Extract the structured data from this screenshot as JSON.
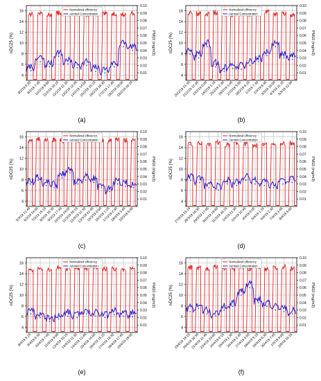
{
  "figure": {
    "panels": [
      {
        "label": "(a)",
        "yleft_label": "nDC25 (%)",
        "yright_label": "PM10 (mg/m3)",
        "legend": [
          "Normalized efficiency",
          "Aerosol Concentration"
        ],
        "xticks": [
          "8/2/19 6:30",
          "9/2/19 7:45",
          "10/2/19 9:00",
          "11/2/19 10:15",
          "12/2/19 11:30",
          "13/2/19 12:45",
          "14/2/19 14:00",
          "15/2/19 15:15",
          "16/2/19 16:30",
          "17/2/19 17:45",
          "18/2/19 19:00",
          "19/2/19 20:15"
        ],
        "yleft_ticks": [
          "4",
          "6",
          "8",
          "10",
          "12",
          "14",
          "16"
        ],
        "yright_ticks": [
          "0.01",
          "0.02",
          "0.03",
          "0.04",
          "0.05",
          "0.06",
          "0.07",
          "0.08",
          "0.09",
          "0.10"
        ]
      },
      {
        "label": "(b)",
        "yleft_label": "nDC25 (%)",
        "yright_label": "PM10 (mg/m3)",
        "legend": [
          "Normalized efficiency",
          "Aerosol Concentration"
        ],
        "xticks": [
          "20/2/19 21:30",
          "21/2/19 22:45",
          "23/2/19 0:00",
          "24/2/19 1:15",
          "25/2/19 2:30",
          "26/2/19 3:45",
          "27/2/19 5:00",
          "28/2/19 6:15",
          "1/3/19 7:30",
          "2/3/19 8:45",
          "3/3/19 10:00",
          "4/3/19 11:15",
          "5/3/19 12:30"
        ],
        "yleft_ticks": [
          "4",
          "6",
          "8",
          "10",
          "12",
          "14",
          "16"
        ],
        "yright_ticks": [
          "0.01",
          "0.02",
          "0.03",
          "0.04",
          "0.05",
          "0.06",
          "0.07",
          "0.08",
          "0.09",
          "0.10"
        ]
      },
      {
        "label": "(c)",
        "yleft_label": "nDC25 (%)",
        "yright_label": "PM10 (mg/m3)",
        "legend": [
          "Normalized efficiency",
          "Aerosol Concentration"
        ],
        "xticks": [
          "5/3/19 12:45",
          "6/3/19 14:00",
          "7/3/19 15:15",
          "8/3/19 16:30",
          "9/3/19 17:45",
          "10/3/19 19:00",
          "11/3/19 20:15",
          "12/3/19 21:30",
          "13/3/19 22:45",
          "15/3/19 0:00",
          "16/3/19 1:15",
          "17/3/19 2:30",
          "18/3/19 3:45",
          "19/3/19 5:00"
        ],
        "yleft_ticks": [
          "4",
          "6",
          "8",
          "10",
          "12",
          "14",
          "16"
        ],
        "yright_ticks": [
          "0.01",
          "0.02",
          "0.03",
          "0.04",
          "0.05",
          "0.06",
          "0.07",
          "0.08",
          "0.09",
          "0.10"
        ]
      },
      {
        "label": "(d)",
        "yleft_label": "nDC25 (%)",
        "yright_label": "PM10 (mg/m3)",
        "legend": [
          "Normalized efficiency",
          "Aerosol Concentration"
        ],
        "xticks": [
          "27/3/19 15:15",
          "28/3/19 16:30",
          "29/3/19 17:45",
          "30/3/19 19:00",
          "31/3/19 20:15",
          "1/4/19 21:30",
          "2/4/19 22:45",
          "4/4/19 0:00",
          "5/4/19 1:15",
          "6/4/19 2:30",
          "7/4/19 3:45",
          "8/4/19 5:00"
        ],
        "yleft_ticks": [
          "4",
          "6",
          "8",
          "10",
          "12",
          "14",
          "16"
        ],
        "yright_ticks": [
          "0.01",
          "0.02",
          "0.03",
          "0.04",
          "0.05",
          "0.06",
          "0.07",
          "0.08",
          "0.09",
          "0.10"
        ]
      },
      {
        "label": "(e)",
        "yleft_label": "nDC25 (%)",
        "yright_label": "PM10 (mg/m3)",
        "legend": [
          "Normalized efficiency",
          "Aerosol Concentration"
        ],
        "xticks": [
          "8/4/19 5:15",
          "9/4/19 6:30",
          "10/4/19 7:45",
          "11/4/19 9:00",
          "12/4/19 10:15",
          "13/4/19 11:30",
          "14/4/19 12:45",
          "15/4/19 14:00",
          "16/4/19 15:15",
          "17/4/19 16:30",
          "18/4/19 17:45",
          "19/4/19 19:00"
        ],
        "yleft_ticks": [
          "4",
          "6",
          "8",
          "10",
          "12",
          "14",
          "16"
        ],
        "yright_ticks": [
          "0.01",
          "0.02",
          "0.03",
          "0.04",
          "0.05",
          "0.06",
          "0.07",
          "0.08",
          "0.09",
          "0.10"
        ]
      },
      {
        "label": "(f)",
        "yleft_label": "nDC25 (%)",
        "yright_label": "PM10 (mg/m3)",
        "legend": [
          "Normalized efficiency",
          "Aerosol Concentration"
        ],
        "xticks": [
          "19/4/19 19:15",
          "20/4/19 20:30",
          "21/4/19 21:45",
          "22/4/19 23:00",
          "24/4/19 0:15",
          "25/4/19 1:30",
          "26/4/19 2:45",
          "27/4/19 4:00",
          "28/4/19 5:15",
          "29/4/19 6:30",
          "30/4/19 7:45",
          "1/5/19 9:00",
          "2/5/19 10:15"
        ],
        "yleft_ticks": [
          "4",
          "6",
          "8",
          "10",
          "12",
          "14",
          "16"
        ],
        "yright_ticks": [
          "0.01",
          "0.02",
          "0.03",
          "0.04",
          "0.05",
          "0.06",
          "0.07",
          "0.08",
          "0.09",
          "0.10"
        ]
      }
    ]
  },
  "chart_data": [
    {
      "type": "line",
      "panel": "(a)",
      "x": [
        "8/2/19 6:30",
        "9/2/19 7:45",
        "10/2/19 9:00",
        "11/2/19 10:15",
        "12/2/19 11:30",
        "13/2/19 12:45",
        "14/2/19 14:00",
        "15/2/19 15:15",
        "16/2/19 16:30",
        "17/2/19 17:45",
        "18/2/19 19:00",
        "19/2/19 20:15"
      ],
      "ylim_left": [
        3,
        17
      ],
      "ylim_right": [
        0,
        0.1
      ],
      "grid": true,
      "legend_position": "top-center",
      "series": [
        {
          "name": "Normalized efficiency",
          "axis": "left",
          "color": "#e51c1c",
          "values": [
            15.4,
            15.5,
            15.3,
            15.6,
            15.4,
            15.5,
            15.3,
            15.2,
            15.4,
            15.5,
            15.3,
            15.6
          ]
        },
        {
          "name": "Aerosol Concentration",
          "axis": "right",
          "color": "#1c1cd4",
          "values": [
            0.013,
            0.025,
            0.018,
            0.032,
            0.022,
            0.017,
            0.02,
            0.012,
            0.01,
            0.018,
            0.045,
            0.04
          ]
        }
      ]
    },
    {
      "type": "line",
      "panel": "(b)",
      "x": [
        "20/2/19 21:30",
        "21/2/19 22:45",
        "23/2/19 0:00",
        "24/2/19 1:15",
        "25/2/19 2:30",
        "26/2/19 3:45",
        "27/2/19 5:00",
        "28/2/19 6:15",
        "1/3/19 7:30",
        "2/3/19 8:45",
        "3/3/19 10:00",
        "4/3/19 11:15",
        "5/3/19 12:30"
      ],
      "ylim_left": [
        3,
        17
      ],
      "ylim_right": [
        0,
        0.1
      ],
      "grid": true,
      "legend_position": "top-center",
      "series": [
        {
          "name": "Normalized efficiency",
          "axis": "left",
          "color": "#e51c1c",
          "values": [
            15.6,
            15.5,
            15.4,
            15.7,
            15.5,
            15.3,
            15.6,
            15.4,
            15.5,
            15.8,
            15.4,
            15.5,
            15.3
          ]
        },
        {
          "name": "Aerosol Concentration",
          "axis": "right",
          "color": "#1c1cd4",
          "values": [
            0.035,
            0.03,
            0.045,
            0.018,
            0.012,
            0.016,
            0.015,
            0.02,
            0.025,
            0.033,
            0.045,
            0.03,
            0.028
          ]
        }
      ]
    },
    {
      "type": "line",
      "panel": "(c)",
      "x": [
        "5/3/19 12:45",
        "6/3/19 14:00",
        "7/3/19 15:15",
        "8/3/19 16:30",
        "9/3/19 17:45",
        "10/3/19 19:00",
        "11/3/19 20:15",
        "12/3/19 21:30",
        "13/3/19 22:45",
        "15/3/19 0:00",
        "16/3/19 1:15",
        "17/3/19 2:30",
        "18/3/19 3:45",
        "19/3/19 5:00"
      ],
      "ylim_left": [
        3,
        17
      ],
      "ylim_right": [
        0,
        0.1
      ],
      "grid": true,
      "legend_position": "top-center",
      "series": [
        {
          "name": "Normalized efficiency",
          "axis": "left",
          "color": "#e51c1c",
          "values": [
            15.4,
            15.5,
            15.6,
            15.4,
            15.3,
            15.5,
            15.4,
            15.7,
            15.5,
            15.4,
            15.3,
            15.5,
            15.4,
            15.6
          ]
        },
        {
          "name": "Aerosol Concentration",
          "axis": "right",
          "color": "#1c1cd4",
          "values": [
            0.03,
            0.035,
            0.028,
            0.025,
            0.038,
            0.045,
            0.03,
            0.035,
            0.032,
            0.025,
            0.02,
            0.03,
            0.027,
            0.025
          ]
        }
      ]
    },
    {
      "type": "line",
      "panel": "(d)",
      "x": [
        "27/3/19 15:15",
        "28/3/19 16:30",
        "29/3/19 17:45",
        "30/3/19 19:00",
        "31/3/19 20:15",
        "1/4/19 21:30",
        "2/4/19 22:45",
        "4/4/19 0:00",
        "5/4/19 1:15",
        "6/4/19 2:30",
        "7/4/19 3:45",
        "8/4/19 5:00"
      ],
      "ylim_left": [
        3,
        17
      ],
      "ylim_right": [
        0,
        0.1
      ],
      "grid": true,
      "legend_position": "top-center",
      "series": [
        {
          "name": "Normalized efficiency",
          "axis": "left",
          "color": "#e51c1c",
          "values": [
            14.6,
            14.8,
            14.7,
            14.9,
            14.6,
            14.8,
            14.7,
            14.5,
            14.8,
            14.6,
            14.7,
            14.9
          ]
        },
        {
          "name": "Aerosol Concentration",
          "axis": "right",
          "color": "#1c1cd4",
          "values": [
            0.035,
            0.032,
            0.025,
            0.022,
            0.03,
            0.028,
            0.035,
            0.03,
            0.028,
            0.025,
            0.03,
            0.032
          ]
        }
      ]
    },
    {
      "type": "line",
      "panel": "(e)",
      "x": [
        "8/4/19 5:15",
        "9/4/19 6:30",
        "10/4/19 7:45",
        "11/4/19 9:00",
        "12/4/19 10:15",
        "13/4/19 11:30",
        "14/4/19 12:45",
        "15/4/19 14:00",
        "16/4/19 15:15",
        "17/4/19 16:30",
        "18/4/19 17:45",
        "19/4/19 19:00"
      ],
      "ylim_left": [
        3,
        17
      ],
      "ylim_right": [
        0,
        0.1
      ],
      "grid": true,
      "legend_position": "top-center",
      "series": [
        {
          "name": "Normalized efficiency",
          "axis": "left",
          "color": "#e51c1c",
          "values": [
            14.8,
            15.0,
            14.9,
            15.1,
            14.8,
            15.0,
            14.9,
            15.2,
            14.9,
            15.0,
            14.8,
            15.1
          ]
        },
        {
          "name": "Aerosol Concentration",
          "axis": "right",
          "color": "#1c1cd4",
          "values": [
            0.025,
            0.02,
            0.015,
            0.018,
            0.022,
            0.02,
            0.025,
            0.022,
            0.02,
            0.024,
            0.022,
            0.021
          ]
        }
      ]
    },
    {
      "type": "line",
      "panel": "(f)",
      "x": [
        "19/4/19 19:15",
        "20/4/19 20:30",
        "21/4/19 21:45",
        "22/4/19 23:00",
        "24/4/19 0:15",
        "25/4/19 1:30",
        "26/4/19 2:45",
        "27/4/19 4:00",
        "28/4/19 5:15",
        "29/4/19 6:30",
        "30/4/19 7:45",
        "1/5/19 9:00",
        "2/5/19 10:15"
      ],
      "ylim_left": [
        3,
        17
      ],
      "ylim_right": [
        0,
        0.1
      ],
      "grid": true,
      "legend_position": "top-center",
      "series": [
        {
          "name": "Normalized efficiency",
          "axis": "left",
          "color": "#e51c1c",
          "values": [
            15.2,
            15.0,
            14.8,
            15.3,
            15.1,
            14.9,
            15.4,
            15.0,
            15.2,
            14.9,
            15.1,
            15.3,
            15.0
          ]
        },
        {
          "name": "Aerosol Concentration",
          "axis": "right",
          "color": "#1c1cd4",
          "values": [
            0.028,
            0.032,
            0.025,
            0.022,
            0.03,
            0.035,
            0.05,
            0.06,
            0.04,
            0.035,
            0.03,
            0.028,
            0.025
          ]
        }
      ]
    }
  ]
}
